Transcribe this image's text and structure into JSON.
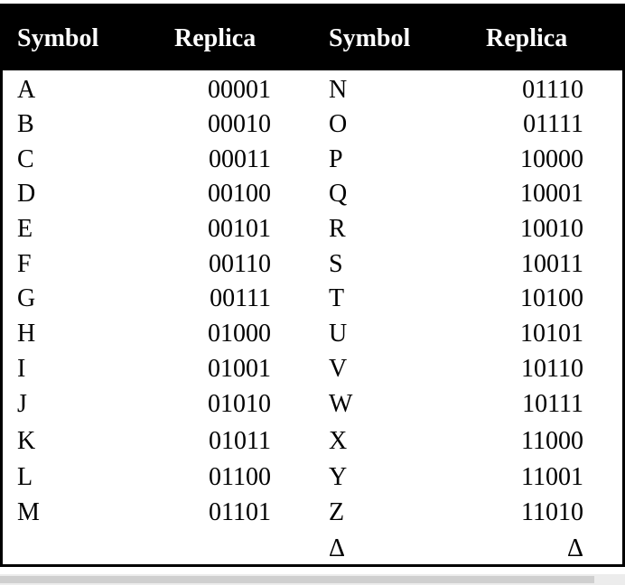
{
  "table": {
    "headers": [
      "Symbol",
      "Replica",
      "Symbol",
      "Replica"
    ],
    "rows": [
      [
        "A",
        "00001",
        "N",
        "01110"
      ],
      [
        "B",
        "00010",
        "O",
        "01111"
      ],
      [
        "C",
        "00011",
        "P",
        "10000"
      ],
      [
        "D",
        "00100",
        "Q",
        "10001"
      ],
      [
        "E",
        "00101",
        "R",
        "10010"
      ],
      [
        "F",
        "00110",
        "S",
        "10011"
      ],
      [
        "G",
        "00111",
        "T",
        "10100"
      ],
      [
        "H",
        "01000",
        "U",
        "10101"
      ],
      [
        "I",
        "01001",
        "V",
        "10110"
      ],
      [
        "J",
        "01010",
        "W",
        "10111"
      ],
      [
        "K",
        "01011",
        "X",
        "11000"
      ],
      [
        "L",
        "01100",
        "Y",
        "11001"
      ],
      [
        "M",
        "01101",
        "Z",
        "11010"
      ],
      [
        "",
        "",
        "Δ",
        "Δ"
      ]
    ]
  },
  "colors": {
    "header_bg": "#000000",
    "header_text": "#ffffff",
    "cell_text": "#000000"
  }
}
